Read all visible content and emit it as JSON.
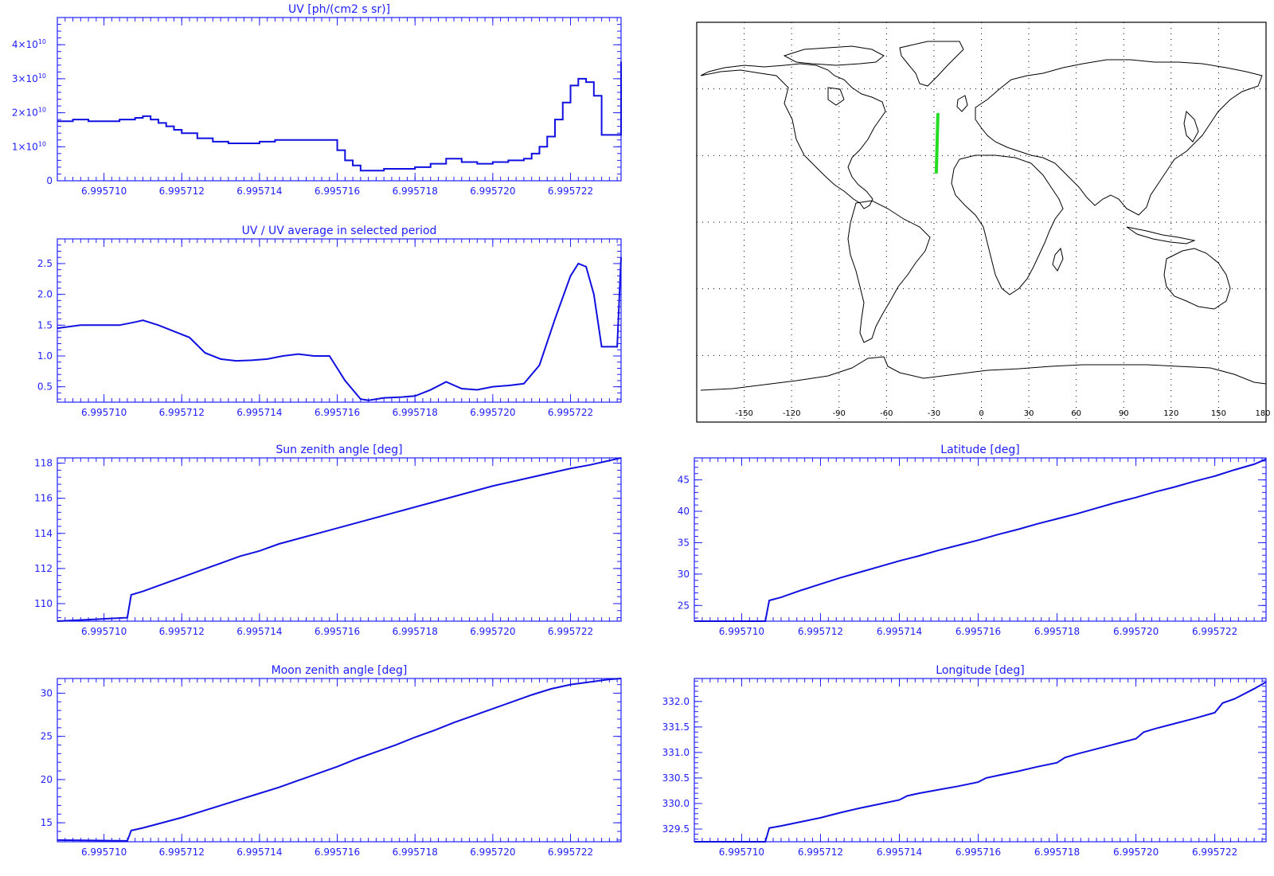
{
  "chart_data": [
    {
      "id": "uv",
      "type": "line",
      "step": true,
      "title": "UV [ph/(cm2 s sr)]",
      "xlim": [
        6.9957088,
        6.9957233
      ],
      "ylim": [
        0,
        48000000000.0
      ],
      "xticks": [
        "6.995710",
        "6.995712",
        "6.995714",
        "6.995716",
        "6.995718",
        "6.995720",
        "6.995722"
      ],
      "xtick_values": [
        6.99571,
        6.995712,
        6.995714,
        6.995716,
        6.995718,
        6.99572,
        6.995722
      ],
      "yticks": [
        {
          "value": 0,
          "label": "0",
          "exp": ""
        },
        {
          "value": 10000000000.0,
          "label": "1×10",
          "exp": "10"
        },
        {
          "value": 20000000000.0,
          "label": "2×10",
          "exp": "10"
        },
        {
          "value": 30000000000.0,
          "label": "3×10",
          "exp": "10"
        },
        {
          "value": 40000000000.0,
          "label": "4×10",
          "exp": "10"
        }
      ],
      "x": [
        6.9957088,
        6.9957092,
        6.9957096,
        6.99571,
        6.9957104,
        6.9957108,
        6.995711,
        6.9957112,
        6.9957114,
        6.9957116,
        6.9957118,
        6.995712,
        6.9957124,
        6.9957128,
        6.9957132,
        6.9957136,
        6.995714,
        6.9957144,
        6.9957148,
        6.9957152,
        6.9957156,
        6.995716,
        6.9957162,
        6.9957164,
        6.9957166,
        6.9957168,
        6.9957172,
        6.9957176,
        6.995718,
        6.9957184,
        6.9957188,
        6.9957192,
        6.9957196,
        6.99572,
        6.9957204,
        6.9957208,
        6.995721,
        6.9957212,
        6.9957214,
        6.9957216,
        6.9957218,
        6.995722,
        6.9957222,
        6.9957224,
        6.9957226,
        6.9957228,
        6.995723,
        6.9957233
      ],
      "y": [
        17500000000.0,
        18000000000.0,
        17500000000.0,
        17500000000.0,
        18000000000.0,
        18500000000.0,
        19000000000.0,
        18000000000.0,
        17000000000.0,
        16000000000.0,
        15000000000.0,
        14000000000.0,
        12500000000.0,
        11500000000.0,
        11000000000.0,
        11000000000.0,
        11500000000.0,
        12000000000.0,
        12000000000.0,
        12000000000.0,
        12000000000.0,
        9000000000.0,
        6000000000.0,
        4500000000.0,
        3000000000.0,
        3000000000.0,
        3500000000.0,
        3500000000.0,
        4000000000.0,
        5000000000.0,
        6500000000.0,
        5500000000.0,
        5000000000.0,
        5500000000.0,
        6000000000.0,
        6500000000.0,
        8000000000.0,
        10000000000.0,
        13000000000.0,
        18000000000.0,
        23000000000.0,
        28000000000.0,
        30000000000.0,
        29000000000.0,
        25000000000.0,
        13500000000.0,
        13500000000.0,
        35000000000.0
      ]
    },
    {
      "id": "uvratio",
      "type": "line",
      "title": "UV / UV average in selected period",
      "xlim": [
        6.9957088,
        6.9957233
      ],
      "ylim": [
        0.25,
        2.9
      ],
      "xticks": [
        "6.995710",
        "6.995712",
        "6.995714",
        "6.995716",
        "6.995718",
        "6.995720",
        "6.995722"
      ],
      "xtick_values": [
        6.99571,
        6.995712,
        6.995714,
        6.995716,
        6.995718,
        6.99572,
        6.995722
      ],
      "yticks": [
        {
          "value": 0.5,
          "label": "0.5"
        },
        {
          "value": 1.0,
          "label": "1.0"
        },
        {
          "value": 1.5,
          "label": "1.5"
        },
        {
          "value": 2.0,
          "label": "2.0"
        },
        {
          "value": 2.5,
          "label": "2.5"
        }
      ],
      "x": [
        6.9957088,
        6.9957094,
        6.99571,
        6.9957104,
        6.9957108,
        6.995711,
        6.9957114,
        6.9957118,
        6.9957122,
        6.9957126,
        6.995713,
        6.9957134,
        6.9957138,
        6.9957142,
        6.9957146,
        6.995715,
        6.9957154,
        6.9957158,
        6.9957162,
        6.9957166,
        6.9957168,
        6.9957172,
        6.9957176,
        6.995718,
        6.9957184,
        6.9957188,
        6.9957192,
        6.9957196,
        6.99572,
        6.9957204,
        6.9957208,
        6.9957212,
        6.9957216,
        6.995722,
        6.9957222,
        6.9957224,
        6.9957226,
        6.9957228,
        6.995723,
        6.9957232,
        6.9957233
      ],
      "y": [
        1.45,
        1.5,
        1.5,
        1.5,
        1.55,
        1.58,
        1.5,
        1.4,
        1.3,
        1.05,
        0.95,
        0.92,
        0.93,
        0.95,
        1.0,
        1.03,
        1.0,
        1.0,
        0.6,
        0.3,
        0.28,
        0.32,
        0.33,
        0.35,
        0.45,
        0.58,
        0.47,
        0.45,
        0.5,
        0.52,
        0.55,
        0.85,
        1.6,
        2.3,
        2.5,
        2.45,
        2.0,
        1.15,
        1.15,
        1.15,
        2.6
      ]
    },
    {
      "id": "sza",
      "type": "line",
      "title": "Sun zenith angle [deg]",
      "xlim": [
        6.9957088,
        6.9957233
      ],
      "ylim": [
        109,
        118.3
      ],
      "xticks": [
        "6.995710",
        "6.995712",
        "6.995714",
        "6.995716",
        "6.995718",
        "6.995720",
        "6.995722"
      ],
      "xtick_values": [
        6.99571,
        6.995712,
        6.995714,
        6.995716,
        6.995718,
        6.99572,
        6.995722
      ],
      "yticks": [
        {
          "value": 110,
          "label": "110"
        },
        {
          "value": 112,
          "label": "112"
        },
        {
          "value": 114,
          "label": "114"
        },
        {
          "value": 116,
          "label": "116"
        },
        {
          "value": 118,
          "label": "118"
        }
      ],
      "x": [
        6.9957088,
        6.9957106,
        6.9957107,
        6.995711,
        6.9957115,
        6.995712,
        6.9957125,
        6.995713,
        6.9957135,
        6.995714,
        6.9957145,
        6.995715,
        6.9957155,
        6.995716,
        6.9957165,
        6.995717,
        6.9957175,
        6.995718,
        6.9957185,
        6.995719,
        6.9957195,
        6.99572,
        6.9957205,
        6.995721,
        6.9957215,
        6.995722,
        6.9957225,
        6.995723,
        6.9957233
      ],
      "y": [
        109.0,
        109.2,
        110.5,
        110.7,
        111.1,
        111.5,
        111.9,
        112.3,
        112.7,
        113.0,
        113.4,
        113.7,
        114.0,
        114.3,
        114.6,
        114.9,
        115.2,
        115.5,
        115.8,
        116.1,
        116.4,
        116.7,
        116.95,
        117.2,
        117.45,
        117.7,
        117.9,
        118.15,
        118.3
      ]
    },
    {
      "id": "lat",
      "type": "line",
      "title": "Latitude [deg]",
      "xlim": [
        6.9957088,
        6.9957233
      ],
      "ylim": [
        22.5,
        48.5
      ],
      "xticks": [
        "6.995710",
        "6.995712",
        "6.995714",
        "6.995716",
        "6.995718",
        "6.995720",
        "6.995722"
      ],
      "xtick_values": [
        6.99571,
        6.995712,
        6.995714,
        6.995716,
        6.995718,
        6.99572,
        6.995722
      ],
      "yticks": [
        {
          "value": 25,
          "label": "25"
        },
        {
          "value": 30,
          "label": "30"
        },
        {
          "value": 35,
          "label": "35"
        },
        {
          "value": 40,
          "label": "40"
        },
        {
          "value": 45,
          "label": "45"
        }
      ],
      "x": [
        6.9957088,
        6.9957106,
        6.9957107,
        6.995711,
        6.9957115,
        6.995712,
        6.9957125,
        6.995713,
        6.9957135,
        6.995714,
        6.9957145,
        6.995715,
        6.9957155,
        6.995716,
        6.9957165,
        6.995717,
        6.9957175,
        6.995718,
        6.9957185,
        6.995719,
        6.9957195,
        6.99572,
        6.9957205,
        6.995721,
        6.9957215,
        6.995722,
        6.9957225,
        6.995723,
        6.9957233
      ],
      "y": [
        22.5,
        22.5,
        25.8,
        26.3,
        27.4,
        28.4,
        29.4,
        30.3,
        31.2,
        32.1,
        32.9,
        33.8,
        34.6,
        35.4,
        36.3,
        37.1,
        38.0,
        38.8,
        39.6,
        40.5,
        41.4,
        42.2,
        43.1,
        43.9,
        44.8,
        45.6,
        46.6,
        47.5,
        48.3
      ]
    },
    {
      "id": "mza",
      "type": "line",
      "title": "Moon zenith angle [deg]",
      "xlim": [
        6.9957088,
        6.9957233
      ],
      "ylim": [
        12.8,
        31.7
      ],
      "xticks": [
        "6.995710",
        "6.995712",
        "6.995714",
        "6.995716",
        "6.995718",
        "6.995720",
        "6.995722"
      ],
      "xtick_values": [
        6.99571,
        6.995712,
        6.995714,
        6.995716,
        6.995718,
        6.99572,
        6.995722
      ],
      "yticks": [
        {
          "value": 15,
          "label": "15"
        },
        {
          "value": 20,
          "label": "20"
        },
        {
          "value": 25,
          "label": "25"
        },
        {
          "value": 30,
          "label": "30"
        }
      ],
      "x": [
        6.9957088,
        6.9957106,
        6.9957107,
        6.995711,
        6.9957115,
        6.995712,
        6.9957125,
        6.995713,
        6.9957135,
        6.995714,
        6.9957145,
        6.995715,
        6.9957155,
        6.995716,
        6.9957165,
        6.995717,
        6.9957175,
        6.995718,
        6.9957185,
        6.995719,
        6.9957195,
        6.99572,
        6.9957205,
        6.995721,
        6.9957215,
        6.995722,
        6.9957225,
        6.995723,
        6.9957233
      ],
      "y": [
        13.0,
        12.9,
        14.1,
        14.4,
        15.0,
        15.6,
        16.3,
        17.0,
        17.7,
        18.4,
        19.1,
        19.9,
        20.7,
        21.5,
        22.4,
        23.2,
        24.0,
        24.9,
        25.7,
        26.6,
        27.4,
        28.2,
        29.0,
        29.8,
        30.5,
        31.0,
        31.3,
        31.6,
        31.7
      ]
    },
    {
      "id": "lon",
      "type": "line",
      "title": "Longitude [deg]",
      "xlim": [
        6.9957088,
        6.9957233
      ],
      "ylim": [
        329.25,
        332.45
      ],
      "xticks": [
        "6.995710",
        "6.995712",
        "6.995714",
        "6.995716",
        "6.995718",
        "6.995720",
        "6.995722"
      ],
      "xtick_values": [
        6.99571,
        6.995712,
        6.995714,
        6.995716,
        6.995718,
        6.99572,
        6.995722
      ],
      "yticks": [
        {
          "value": 329.5,
          "label": "329.5"
        },
        {
          "value": 330.0,
          "label": "330.0"
        },
        {
          "value": 330.5,
          "label": "330.5"
        },
        {
          "value": 331.0,
          "label": "331.0"
        },
        {
          "value": 331.5,
          "label": "331.5"
        },
        {
          "value": 332.0,
          "label": "332.0"
        }
      ],
      "x": [
        6.9957088,
        6.9957106,
        6.9957107,
        6.995711,
        6.9957115,
        6.995712,
        6.9957125,
        6.995713,
        6.9957135,
        6.995714,
        6.9957142,
        6.9957145,
        6.995715,
        6.9957155,
        6.995716,
        6.9957162,
        6.9957165,
        6.995717,
        6.9957175,
        6.995718,
        6.9957182,
        6.9957185,
        6.995719,
        6.9957195,
        6.99572,
        6.9957202,
        6.9957205,
        6.995721,
        6.9957215,
        6.995722,
        6.9957222,
        6.9957225,
        6.995723,
        6.9957233
      ],
      "y": [
        329.25,
        329.25,
        329.52,
        329.56,
        329.64,
        329.72,
        329.82,
        329.91,
        329.99,
        330.07,
        330.15,
        330.2,
        330.27,
        330.34,
        330.42,
        330.5,
        330.55,
        330.63,
        330.72,
        330.8,
        330.9,
        330.97,
        331.07,
        331.17,
        331.27,
        331.4,
        331.47,
        331.57,
        331.67,
        331.78,
        331.97,
        332.05,
        332.25,
        332.38
      ]
    }
  ],
  "map": {
    "lon_ticks": [
      "-150",
      "-120",
      "-90",
      "-60",
      "-30",
      "0",
      "30",
      "60",
      "90",
      "120",
      "150",
      "180"
    ],
    "lon_values": [
      -150,
      -120,
      -90,
      -60,
      -30,
      0,
      30,
      60,
      90,
      120,
      150,
      180
    ],
    "lat_grid_values": [
      60,
      30,
      0,
      -30,
      -60
    ],
    "track": {
      "lon": [
        -28.5,
        -27.5
      ],
      "lat": [
        22.5,
        48.5
      ]
    }
  }
}
